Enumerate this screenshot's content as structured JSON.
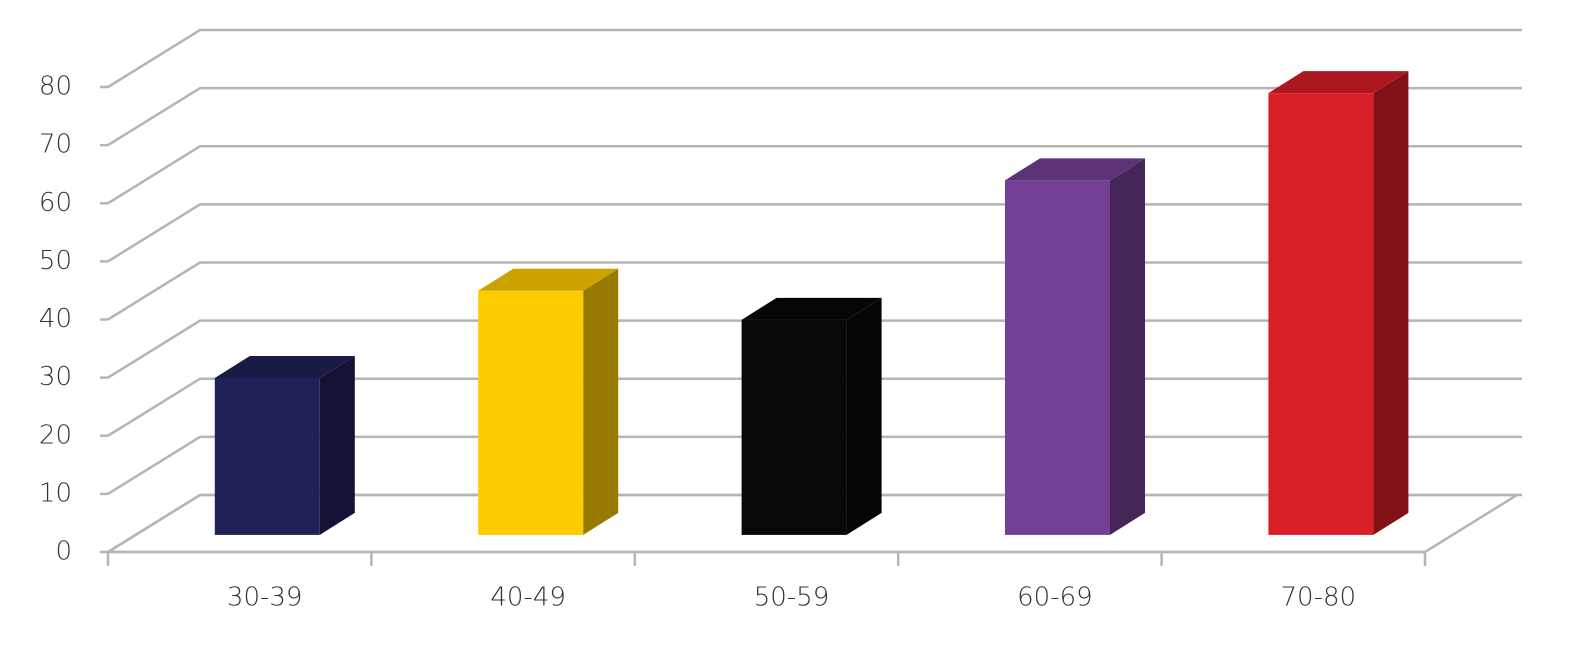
{
  "chart_data": {
    "type": "bar",
    "categories": [
      "30-39",
      "40-49",
      "50-59",
      "60-69",
      "70-80"
    ],
    "values": [
      27,
      42,
      37,
      61,
      76
    ],
    "colors": [
      "#1f2058",
      "#fccc00",
      "#080808",
      "#744095",
      "#d81e27"
    ],
    "ylim": [
      0,
      80
    ],
    "yticks": [
      0,
      10,
      20,
      30,
      40,
      50,
      60,
      70,
      80
    ],
    "grid": true
  }
}
